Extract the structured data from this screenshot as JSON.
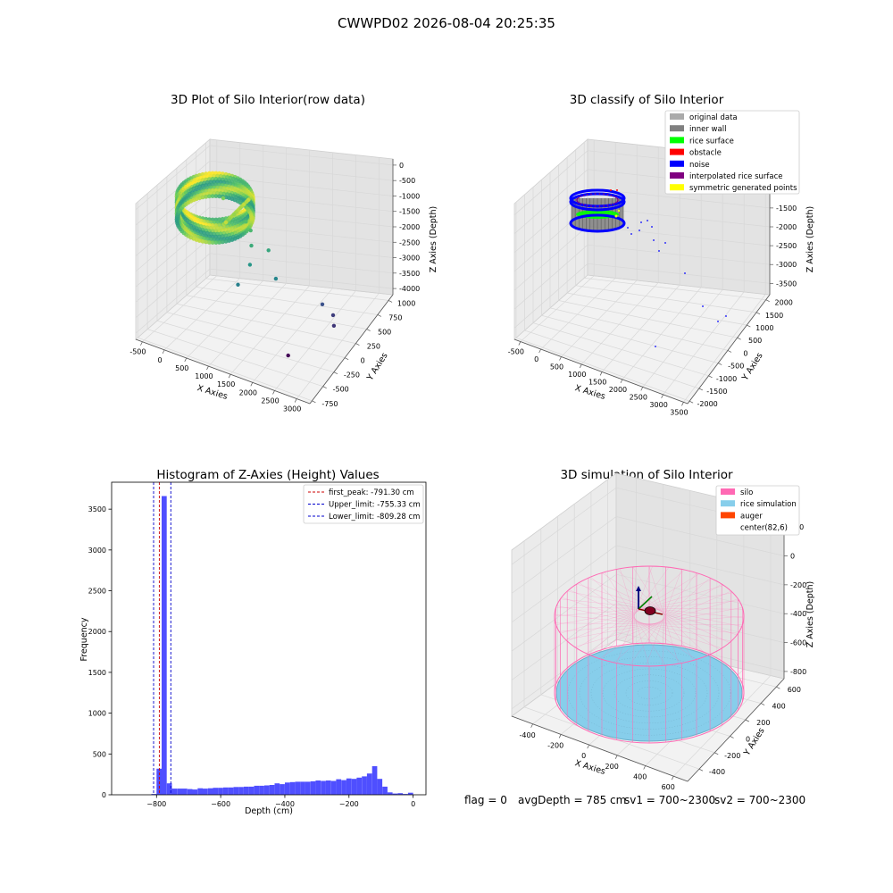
{
  "figure_title": "CWWPD02 2026-08-04 20:25:35",
  "colors": {
    "raw_gradient": [
      "#440154",
      "#3b528b",
      "#21918c",
      "#5ec962",
      "#fde725"
    ],
    "legend_grey": "#aaaaaa",
    "inner_wall": "#808080",
    "rice_surface": "#00ff00",
    "obstacle": "#ff0000",
    "noise": "#0000ff",
    "interp": "#800080",
    "symmetric": "#ffff00",
    "hist_bar": "#4040ff",
    "peak_line": "#cc0000",
    "limit_line": "#0000cc",
    "silo": "#ff69b4",
    "rice_sim": "#87ceeb",
    "auger": "#ff4500"
  },
  "chart_data": [
    {
      "type": "scatter",
      "subtype": "3d",
      "title": "3D Plot of Silo Interior(row data)",
      "xlabel": "X Axies",
      "ylabel": "Y Axies",
      "zlabel": "Z Axies (Depth)",
      "xticks": [
        "-500",
        "0",
        "500",
        "1000",
        "1500",
        "2000",
        "2500",
        "3000"
      ],
      "yticks": [
        "-750",
        "-500",
        "-250",
        "0",
        "250",
        "500",
        "750",
        "1000"
      ],
      "zticks": [
        "0",
        "-500",
        "-1000",
        "-1500",
        "-2000",
        "-2500",
        "-3000",
        "-3500",
        "-4000"
      ],
      "xlim": [
        -650,
        3300
      ],
      "ylim": [
        -800,
        1100
      ],
      "zlim": [
        -4200,
        200
      ],
      "grid": true,
      "outlier_points": [
        {
          "x": 700,
          "y": 500,
          "z": -1100
        },
        {
          "x": 850,
          "y": 450,
          "z": -1250
        },
        {
          "x": 1000,
          "y": 300,
          "z": -1500
        },
        {
          "x": 1100,
          "y": 150,
          "z": -1900
        },
        {
          "x": 1050,
          "y": -100,
          "z": -2300
        },
        {
          "x": 1300,
          "y": 400,
          "z": -1600
        },
        {
          "x": 1600,
          "y": 250,
          "z": -2200
        },
        {
          "x": 2300,
          "y": 650,
          "z": -3100
        },
        {
          "x": 2500,
          "y": 700,
          "z": -3400
        },
        {
          "x": 2650,
          "y": 550,
          "z": -3500
        },
        {
          "x": 2100,
          "y": 0,
          "z": -4150
        }
      ]
    },
    {
      "type": "scatter",
      "subtype": "3d",
      "title": "3D classify of Silo Interior",
      "xlabel": "X Axies",
      "ylabel": "Y Axies",
      "zlabel": "Z Axies (Depth)",
      "xticks": [
        "-500",
        "0",
        "500",
        "1000",
        "1500",
        "2000",
        "2500",
        "3000",
        "3500"
      ],
      "yticks": [
        "-2000",
        "-1500",
        "-1000",
        "-500",
        "0",
        "500",
        "1000",
        "1500",
        "2000"
      ],
      "zticks": [
        "-500",
        "-1000",
        "-1500",
        "-2000",
        "-2500",
        "-3000",
        "-3500"
      ],
      "xlim": [
        -650,
        3600
      ],
      "ylim": [
        -2100,
        2200
      ],
      "zlim": [
        -3800,
        -200
      ],
      "grid": true,
      "legend": {
        "position": "top-right",
        "entries": [
          {
            "label": "original data",
            "color": "#aaaaaa"
          },
          {
            "label": "inner wall",
            "color": "#808080"
          },
          {
            "label": "rice surface",
            "color": "#00ff00"
          },
          {
            "label": "obstacle",
            "color": "#ff0000"
          },
          {
            "label": "noise",
            "color": "#0000ff"
          },
          {
            "label": "interpolated rice surface",
            "color": "#800080"
          },
          {
            "label": "symmetric generated points",
            "color": "#ffff00"
          }
        ]
      }
    },
    {
      "type": "bar",
      "subtype": "histogram",
      "title": "Histogram of Z-Axies (Height) Values",
      "xlabel": "Depth (cm)",
      "ylabel": "Frequency",
      "xticks": [
        -800,
        -600,
        -400,
        -200,
        0
      ],
      "yticks": [
        0,
        500,
        1000,
        1500,
        2000,
        2500,
        3000,
        3500
      ],
      "xlim": [
        -940,
        40
      ],
      "ylim": [
        0,
        3830
      ],
      "bin_width": 16,
      "bins": [
        {
          "x": -816,
          "v": 10
        },
        {
          "x": -800,
          "v": 320
        },
        {
          "x": -784,
          "v": 3660
        },
        {
          "x": -768,
          "v": 140
        },
        {
          "x": -752,
          "v": 75
        },
        {
          "x": -736,
          "v": 75
        },
        {
          "x": -720,
          "v": 75
        },
        {
          "x": -704,
          "v": 70
        },
        {
          "x": -688,
          "v": 65
        },
        {
          "x": -672,
          "v": 80
        },
        {
          "x": -656,
          "v": 75
        },
        {
          "x": -640,
          "v": 80
        },
        {
          "x": -624,
          "v": 85
        },
        {
          "x": -608,
          "v": 85
        },
        {
          "x": -592,
          "v": 90
        },
        {
          "x": -576,
          "v": 90
        },
        {
          "x": -560,
          "v": 95
        },
        {
          "x": -544,
          "v": 95
        },
        {
          "x": -528,
          "v": 100
        },
        {
          "x": -512,
          "v": 100
        },
        {
          "x": -496,
          "v": 110
        },
        {
          "x": -480,
          "v": 110
        },
        {
          "x": -464,
          "v": 115
        },
        {
          "x": -448,
          "v": 120
        },
        {
          "x": -432,
          "v": 140
        },
        {
          "x": -416,
          "v": 130
        },
        {
          "x": -400,
          "v": 150
        },
        {
          "x": -384,
          "v": 155
        },
        {
          "x": -368,
          "v": 160
        },
        {
          "x": -352,
          "v": 160
        },
        {
          "x": -336,
          "v": 160
        },
        {
          "x": -320,
          "v": 165
        },
        {
          "x": -304,
          "v": 175
        },
        {
          "x": -288,
          "v": 170
        },
        {
          "x": -272,
          "v": 175
        },
        {
          "x": -256,
          "v": 170
        },
        {
          "x": -240,
          "v": 190
        },
        {
          "x": -224,
          "v": 180
        },
        {
          "x": -208,
          "v": 200
        },
        {
          "x": -192,
          "v": 195
        },
        {
          "x": -176,
          "v": 210
        },
        {
          "x": -160,
          "v": 225
        },
        {
          "x": -144,
          "v": 260
        },
        {
          "x": -128,
          "v": 350
        },
        {
          "x": -112,
          "v": 195
        },
        {
          "x": -96,
          "v": 100
        },
        {
          "x": -80,
          "v": 30
        },
        {
          "x": -64,
          "v": 15
        },
        {
          "x": -48,
          "v": 20
        },
        {
          "x": -32,
          "v": 10
        },
        {
          "x": -16,
          "v": 25
        }
      ],
      "legend": {
        "position": "top-right",
        "entries": [
          {
            "label": "first_peak: -791.30 cm",
            "value": -791.3,
            "color": "#cc0000"
          },
          {
            "label": "Upper_limit: -755.33 cm",
            "value": -755.33,
            "color": "#0000cc"
          },
          {
            "label": "Lower_limit: -809.28 cm",
            "value": -809.28,
            "color": "#0000cc"
          }
        ]
      }
    },
    {
      "type": "scatter",
      "subtype": "3d",
      "title": "3D simulation of Silo Interior",
      "xlabel": "X Axies",
      "ylabel": "Y Axies",
      "zlabel": "Z Axies (Depth)",
      "xticks": [
        "-400",
        "-200",
        "0",
        "200",
        "400",
        "600"
      ],
      "yticks": [
        "-400",
        "-200",
        "0",
        "200",
        "400",
        "600"
      ],
      "zticks": [
        "200",
        "0",
        "-200",
        "-400",
        "-600",
        "-800"
      ],
      "xlim": [
        -550,
        700
      ],
      "ylim": [
        -550,
        700
      ],
      "zlim": [
        -850,
        300
      ],
      "grid": true,
      "silo": {
        "center_x": 82,
        "center_y": 6,
        "radius": 550,
        "top_z": 0,
        "bottom_z": -785
      },
      "legend": {
        "position": "top-right",
        "entries": [
          {
            "label": "silo",
            "color": "#ff69b4"
          },
          {
            "label": "rice simulation",
            "color": "#87ceeb"
          },
          {
            "label": "auger",
            "color": "#ff4500"
          },
          {
            "label": "center(82,6)",
            "color": ""
          }
        ]
      }
    }
  ],
  "footer": {
    "flag": "flag = 0",
    "avg_depth": "avgDepth = 785 cm",
    "sv1": "sv1 = 700~2300",
    "sv2": "sv2 = 700~2300"
  }
}
